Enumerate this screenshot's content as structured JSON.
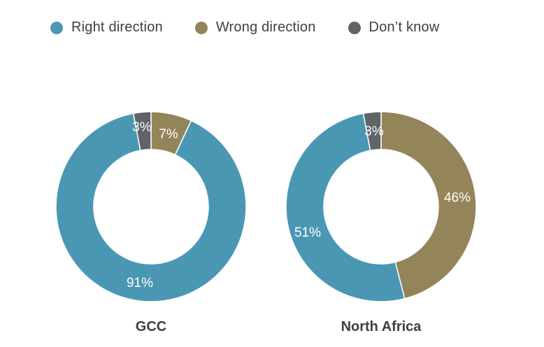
{
  "legend": {
    "items": [
      {
        "label": "Right direction",
        "color": "#4a97b4"
      },
      {
        "label": "Wrong direction",
        "color": "#948459"
      },
      {
        "label": "Don’t know",
        "color": "#5f6469"
      }
    ]
  },
  "colors": {
    "right_direction": "#4a97b4",
    "wrong_direction": "#948459",
    "dont_know": "#5f6469",
    "label_text": "#ffffff",
    "title_text": "#3d3f42"
  },
  "chart_data": [
    {
      "type": "pie",
      "style": "donut",
      "title": "GCC",
      "categories": [
        "Right direction",
        "Wrong direction",
        "Don’t know"
      ],
      "values": [
        91,
        7,
        3
      ],
      "labels": [
        "91%",
        "7%",
        "3%"
      ]
    },
    {
      "type": "pie",
      "style": "donut",
      "title": "North Africa",
      "categories": [
        "Right direction",
        "Wrong direction",
        "Don’t know"
      ],
      "values": [
        51,
        46,
        3
      ],
      "labels": [
        "51%",
        "46%",
        "3%"
      ]
    }
  ]
}
